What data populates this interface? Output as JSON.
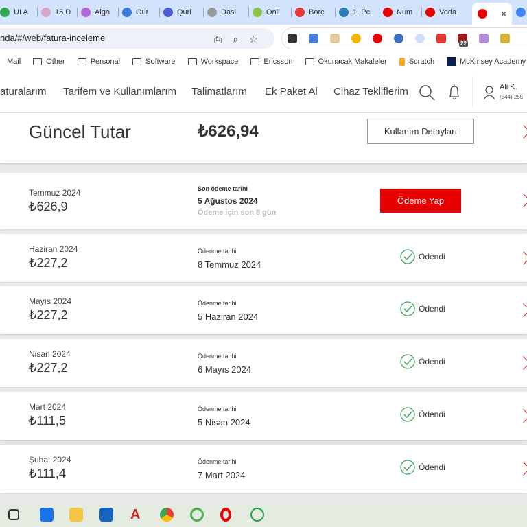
{
  "browser": {
    "tabs": [
      {
        "label": "UI A",
        "color": "#34a853"
      },
      {
        "label": "15 D",
        "color": "#d6a7c9"
      },
      {
        "label": "Algo",
        "color": "#b267d6"
      },
      {
        "label": "Our",
        "color": "#3a7bd5"
      },
      {
        "label": "Quri",
        "color": "#4a5bd6"
      },
      {
        "label": "Dasl",
        "color": "#999999"
      },
      {
        "label": "Onli",
        "color": "#8bc34a"
      },
      {
        "label": "Borç",
        "color": "#e53935"
      },
      {
        "label": "1. Pc",
        "color": "#2a7bb8"
      },
      {
        "label": "Num",
        "color": "#e60000"
      },
      {
        "label": "Voda",
        "color": "#e60000"
      },
      {
        "label": "",
        "color": "#e60000",
        "active": true
      }
    ],
    "close_tab": "×",
    "url": "nda/#/web/fatura-inceleme",
    "extension_badge": "22",
    "bookmarks": [
      "Mail",
      "Other",
      "Personal",
      "Software",
      "Workspace",
      "Ericsson",
      "Okunacak Makaleler",
      "Scratch",
      "McKinsey Academy"
    ]
  },
  "nav": {
    "links": [
      "aturalarım",
      "Tarifem ve Kullanımlarım",
      "Talimatlarım",
      "Ek Paket Al",
      "Cihaz Tekliflerim"
    ],
    "user_name": "Ali K.",
    "user_phone": "(544) 255"
  },
  "current": {
    "title": "Güncel Tutar",
    "amount": "₺626,94",
    "details_button": "Kullanım Detayları"
  },
  "pending": {
    "month": "Temmuz 2024",
    "amount": "₺626,9",
    "date_label": "Son ödeme tarihi",
    "date": "5 Ağustos 2024",
    "remaining": "Ödeme için son 8 gün",
    "pay_button": "Ödeme Yap"
  },
  "accent": "#e60000",
  "paid_bills": [
    {
      "month": "Haziran 2024",
      "amount": "₺227,2",
      "date_label": "Ödenme tarihi",
      "date": "8 Temmuz 2024",
      "status": "Ödendi"
    },
    {
      "month": "Mayıs 2024",
      "amount": "₺227,2",
      "date_label": "Ödenme tarihi",
      "date": "5 Haziran 2024",
      "status": "Ödendi"
    },
    {
      "month": "Nisan 2024",
      "amount": "₺227,2",
      "date_label": "Ödenme tarihi",
      "date": "6 Mayıs 2024",
      "status": "Ödendi"
    },
    {
      "month": "Mart 2024",
      "amount": "₺111,5",
      "date_label": "Ödenme tarihi",
      "date": "5 Nisan 2024",
      "status": "Ödendi"
    },
    {
      "month": "Şubat 2024",
      "amount": "₺111,4",
      "date_label": "Ödenme tarihi",
      "date": "7 Mart 2024",
      "status": "Ödendi"
    }
  ]
}
